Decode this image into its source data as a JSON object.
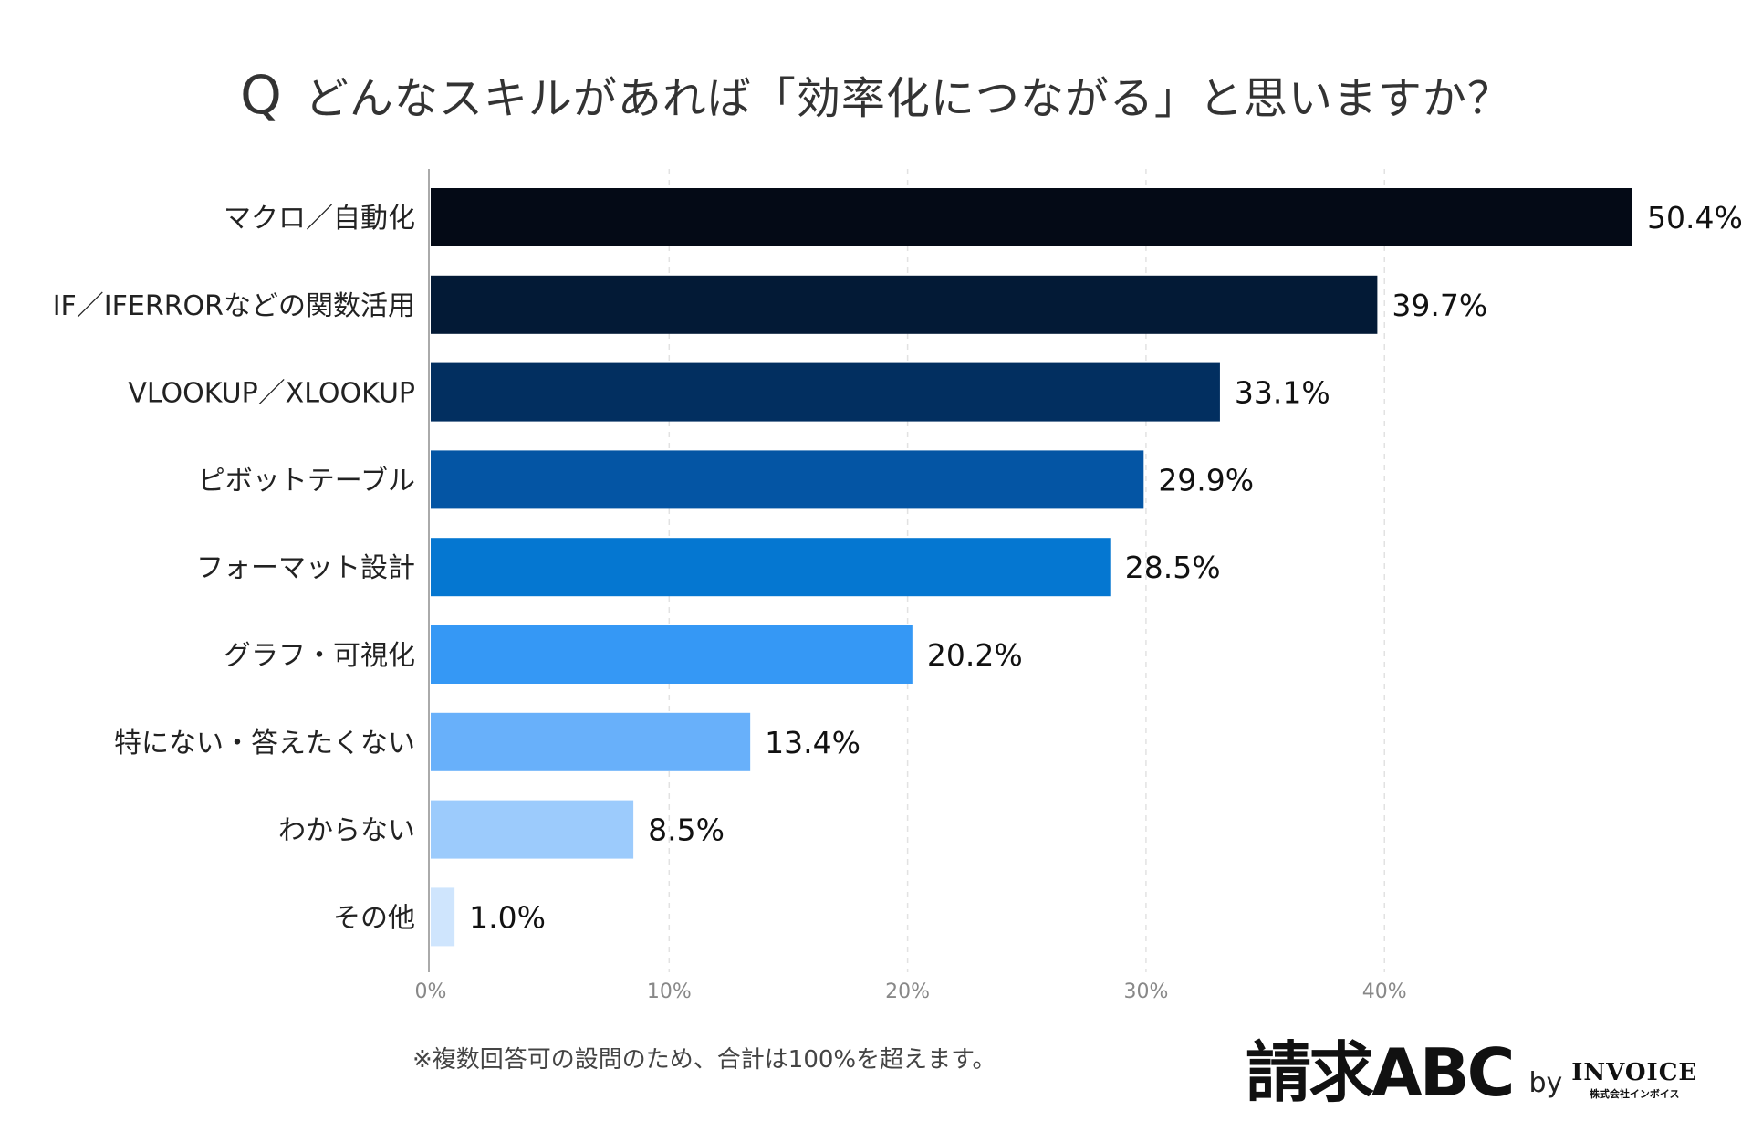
{
  "title": {
    "mark": "Q",
    "text": "どんなスキルがあれば「効率化につながる」と思いますか？"
  },
  "chart_data": {
    "type": "bar",
    "orientation": "horizontal",
    "title": "どんなスキルがあれば「効率化につながる」と思いますか？",
    "categories": [
      "マクロ／自動化",
      "IF／IFERRORなどの関数活用",
      "VLOOKUP／XLOOKUP",
      "ピボットテーブル",
      "フォーマット設計",
      "グラフ・可視化",
      "特にない・答えたくない",
      "わからない",
      "その他"
    ],
    "values": [
      50.4,
      39.7,
      33.1,
      29.9,
      28.5,
      20.2,
      13.4,
      8.5,
      1.0
    ],
    "value_labels": [
      "50.4%",
      "39.7%",
      "33.1%",
      "29.9%",
      "28.5%",
      "20.2%",
      "13.4%",
      "8.5%",
      "1.0%"
    ],
    "colors": [
      "#040a16",
      "#031a36",
      "#022f60",
      "#0455a4",
      "#0577d1",
      "#3598f5",
      "#68b0fa",
      "#9ccbfc",
      "#cfe5fd"
    ],
    "xlim": [
      0,
      50.4
    ],
    "xticks": [
      0,
      10,
      20,
      30,
      40
    ],
    "xtick_labels": [
      "0%",
      "10%",
      "20%",
      "30%",
      "40%"
    ],
    "grid": true
  },
  "footnote": "※複数回答可の設問のため、合計は100%を超えます。",
  "brand": {
    "logo": "請求ABC",
    "by": "by",
    "company": "INVOICE",
    "company_sub": "株式会社インボイス"
  }
}
